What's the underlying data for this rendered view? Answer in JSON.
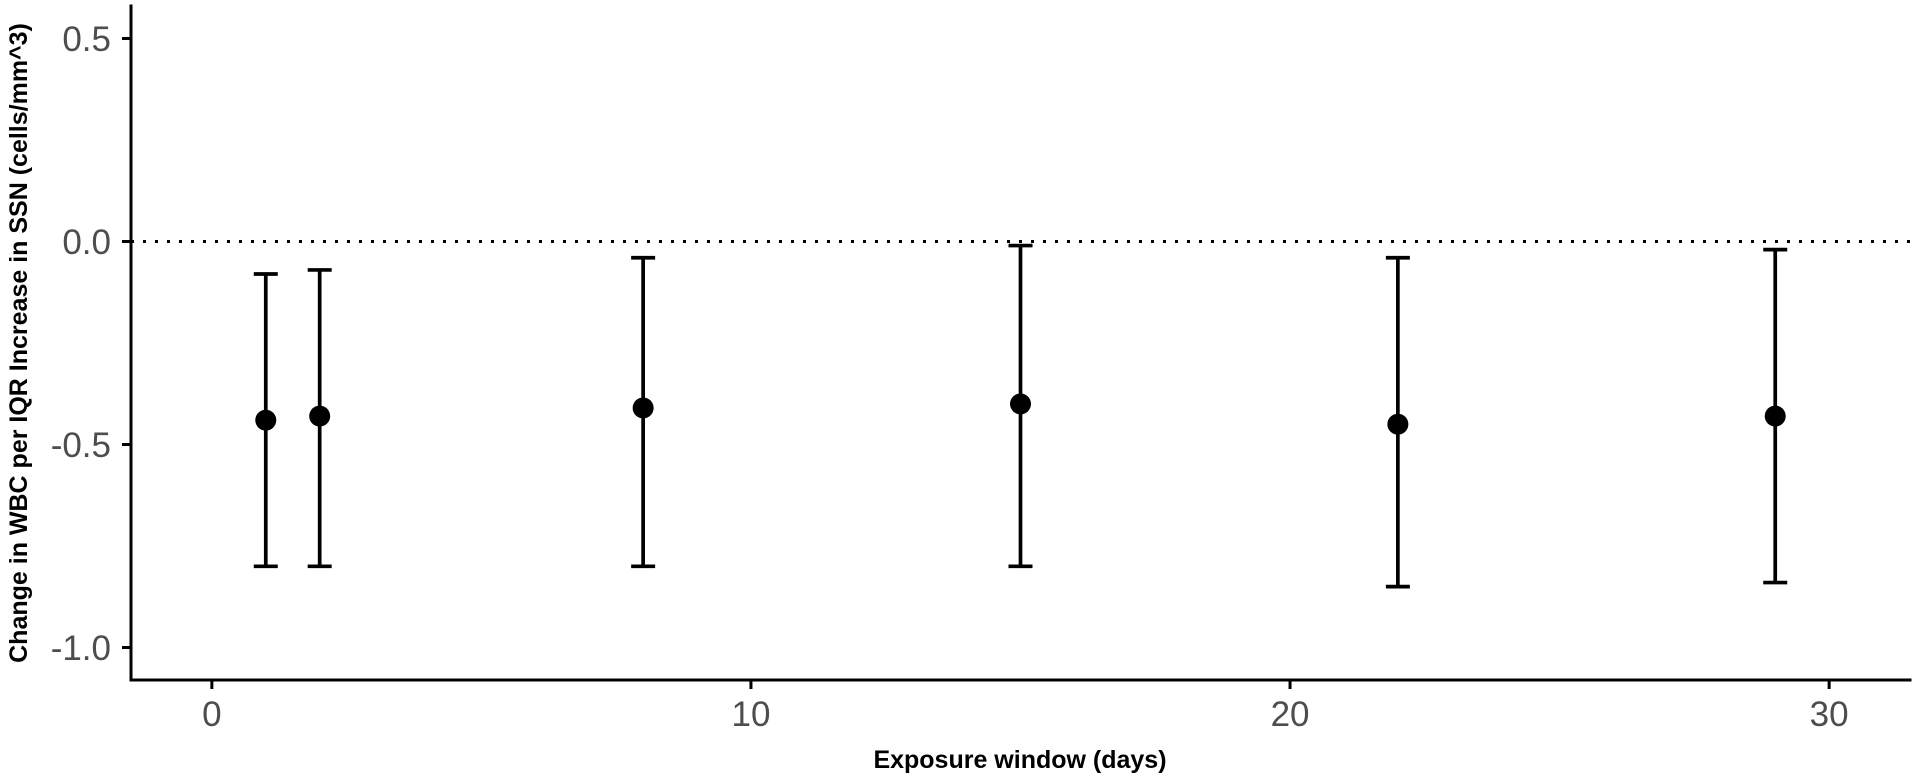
{
  "chart_data": {
    "type": "scatter",
    "error_bars": true,
    "xlabel": "Exposure window (days)",
    "ylabel": "Change in WBC per IQR Increase in SSN (cells/mm^3)",
    "xlim": [
      -1.5,
      31.5
    ],
    "ylim": [
      -1.08,
      0.58
    ],
    "x_ticks": [
      {
        "value": 0,
        "label": "0"
      },
      {
        "value": 10,
        "label": "10"
      },
      {
        "value": 20,
        "label": "20"
      },
      {
        "value": 30,
        "label": "30"
      }
    ],
    "y_ticks": [
      {
        "value": 0.5,
        "label": "0.5"
      },
      {
        "value": 0.0,
        "label": "0.0"
      },
      {
        "value": -0.5,
        "label": "-0.5"
      },
      {
        "value": -1.0,
        "label": "-1.0"
      }
    ],
    "reference_line": {
      "y": 0,
      "dotted": true
    },
    "grid": false,
    "legend": false,
    "series": [
      {
        "x": [
          1,
          2,
          8,
          15,
          22,
          29
        ],
        "y": [
          -0.44,
          -0.43,
          -0.41,
          -0.4,
          -0.45,
          -0.43
        ],
        "ymin": [
          -0.8,
          -0.8,
          -0.8,
          -0.8,
          -0.85,
          -0.84
        ],
        "ymax": [
          -0.08,
          -0.07,
          -0.04,
          -0.01,
          -0.04,
          -0.02
        ]
      }
    ]
  },
  "colors": {
    "marks": "#000000",
    "reference_line": "#000000",
    "axis": "#000000",
    "tick_labels": "#4d4d4d",
    "axis_titles": "#000000",
    "background": "#ffffff"
  }
}
